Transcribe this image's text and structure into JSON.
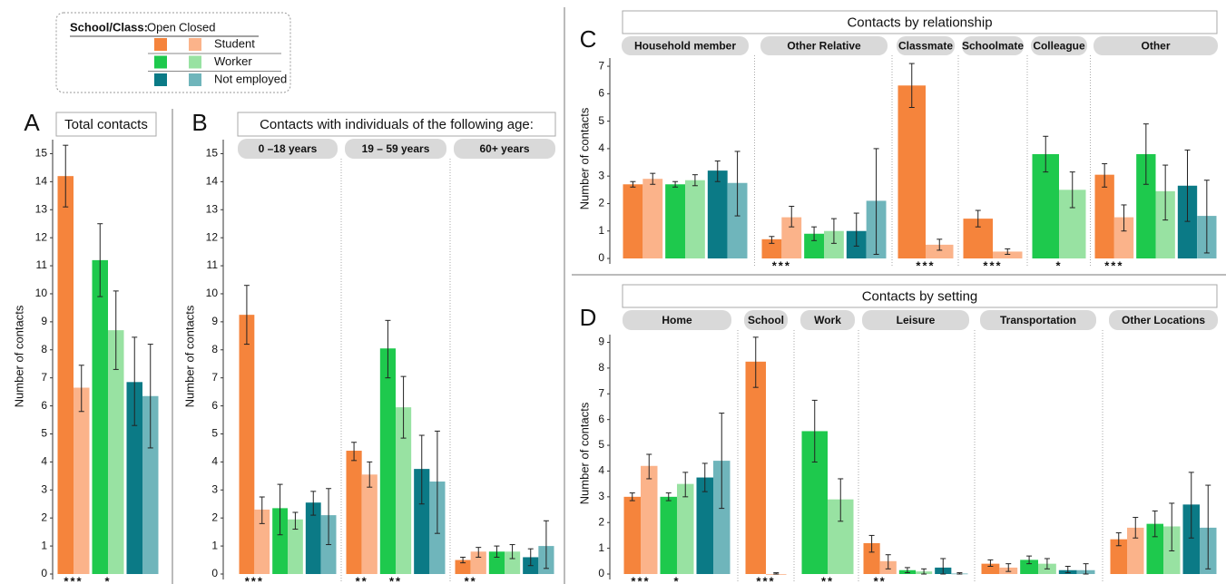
{
  "legend": {
    "title": "School/Class:",
    "open": "Open",
    "closed": "Closed",
    "groups": [
      {
        "name": "Student",
        "colors": [
          "#f5843c",
          "#fbb38a"
        ]
      },
      {
        "name": "Worker",
        "colors": [
          "#1ec94d",
          "#98e2a2"
        ]
      },
      {
        "name": "Not employed",
        "colors": [
          "#0b7a86",
          "#6fb5bb"
        ]
      }
    ]
  },
  "chart_data": [
    {
      "type": "bar",
      "panel": "A",
      "title": "Total contacts",
      "y_label": "Number of contacts",
      "ylim": [
        0,
        15.5
      ],
      "yticks": [
        0,
        1,
        2,
        3,
        4,
        5,
        6,
        7,
        8,
        9,
        10,
        11,
        12,
        13,
        14,
        15
      ],
      "facets": [
        {
          "groups": [
            0,
            1,
            2
          ],
          "values": [
            [
              14.2,
              6.65
            ],
            [
              11.2,
              8.7
            ],
            [
              6.85,
              6.35
            ]
          ],
          "lower": [
            [
              13.1,
              5.8
            ],
            [
              9.9,
              7.3
            ],
            [
              5.3,
              4.5
            ]
          ],
          "upper": [
            [
              15.3,
              7.45
            ],
            [
              12.5,
              10.1
            ],
            [
              8.45,
              8.2
            ]
          ],
          "stars": [
            "***",
            "*",
            null
          ]
        }
      ]
    },
    {
      "type": "bar",
      "panel": "B",
      "title": "Contacts with individuals of the following age:",
      "y_label": "Number of contacts",
      "ylim": [
        0,
        15.5
      ],
      "yticks": [
        0,
        1,
        2,
        3,
        4,
        5,
        6,
        7,
        8,
        9,
        10,
        11,
        12,
        13,
        14,
        15
      ],
      "facets": [
        {
          "label": "0 –18 years",
          "groups": [
            0,
            1,
            2
          ],
          "values": [
            [
              9.25,
              2.3
            ],
            [
              2.35,
              1.95
            ],
            [
              2.55,
              2.1
            ]
          ],
          "lower": [
            [
              8.2,
              1.8
            ],
            [
              1.4,
              1.6
            ],
            [
              2.1,
              1.05
            ]
          ],
          "upper": [
            [
              10.3,
              2.75
            ],
            [
              3.2,
              2.2
            ],
            [
              2.95,
              3.05
            ]
          ],
          "stars": [
            "***",
            null,
            null
          ]
        },
        {
          "label": "19 – 59 years",
          "groups": [
            0,
            1,
            2
          ],
          "values": [
            [
              4.4,
              3.55
            ],
            [
              8.05,
              5.95
            ],
            [
              3.75,
              3.3
            ]
          ],
          "lower": [
            [
              4.05,
              3.1
            ],
            [
              7.0,
              4.85
            ],
            [
              2.5,
              1.45
            ]
          ],
          "upper": [
            [
              4.7,
              4.0
            ],
            [
              9.05,
              7.05
            ],
            [
              4.95,
              5.1
            ]
          ],
          "stars": [
            "**",
            "**",
            null
          ]
        },
        {
          "label": "60+ years",
          "groups": [
            0,
            1,
            2
          ],
          "values": [
            [
              0.5,
              0.8
            ],
            [
              0.8,
              0.8
            ],
            [
              0.6,
              1.0
            ]
          ],
          "lower": [
            [
              0.4,
              0.6
            ],
            [
              0.6,
              0.55
            ],
            [
              0.3,
              0.2
            ]
          ],
          "upper": [
            [
              0.6,
              0.95
            ],
            [
              1.0,
              1.05
            ],
            [
              0.9,
              1.9
            ]
          ],
          "stars": [
            "**",
            null,
            null
          ]
        }
      ]
    },
    {
      "type": "bar",
      "panel": "C",
      "title": "Contacts by relationship",
      "y_label": "Number of contacts",
      "ylim": [
        0,
        7.3
      ],
      "yticks": [
        0,
        1,
        2,
        3,
        4,
        5,
        6,
        7
      ],
      "facets": [
        {
          "label": "Household member",
          "groups": [
            0,
            1,
            2
          ],
          "values": [
            [
              2.7,
              2.9
            ],
            [
              2.7,
              2.85
            ],
            [
              3.2,
              2.75
            ]
          ],
          "lower": [
            [
              2.6,
              2.7
            ],
            [
              2.6,
              2.65
            ],
            [
              2.8,
              1.55
            ]
          ],
          "upper": [
            [
              2.8,
              3.1
            ],
            [
              2.8,
              3.05
            ],
            [
              3.55,
              3.9
            ]
          ],
          "stars": [
            null,
            null,
            null
          ]
        },
        {
          "label": "Other Relative",
          "groups": [
            0,
            1,
            2
          ],
          "values": [
            [
              0.7,
              1.5
            ],
            [
              0.9,
              1.0
            ],
            [
              1.0,
              2.1
            ]
          ],
          "lower": [
            [
              0.55,
              1.15
            ],
            [
              0.65,
              0.55
            ],
            [
              0.45,
              0.15
            ]
          ],
          "upper": [
            [
              0.8,
              1.9
            ],
            [
              1.15,
              1.45
            ],
            [
              1.65,
              4.0
            ]
          ],
          "stars": [
            "***",
            null,
            null
          ]
        },
        {
          "label": "Classmate",
          "groups": [
            0
          ],
          "values": [
            [
              6.3,
              0.5
            ]
          ],
          "lower": [
            [
              5.5,
              0.3
            ]
          ],
          "upper": [
            [
              7.1,
              0.7
            ]
          ],
          "stars": [
            "***"
          ]
        },
        {
          "label": "Schoolmate",
          "groups": [
            0
          ],
          "values": [
            [
              1.45,
              0.25
            ]
          ],
          "lower": [
            [
              1.15,
              0.15
            ]
          ],
          "upper": [
            [
              1.75,
              0.35
            ]
          ],
          "stars": [
            "***"
          ]
        },
        {
          "label": "Colleague",
          "groups": [
            1
          ],
          "values": [
            [
              3.8,
              2.5
            ]
          ],
          "lower": [
            [
              3.15,
              1.85
            ]
          ],
          "upper": [
            [
              4.45,
              3.15
            ]
          ],
          "stars": [
            "*"
          ]
        },
        {
          "label": "Other",
          "groups": [
            0,
            1,
            2
          ],
          "values": [
            [
              3.05,
              1.5
            ],
            [
              3.8,
              2.45
            ],
            [
              2.65,
              1.55
            ]
          ],
          "lower": [
            [
              2.6,
              1.0
            ],
            [
              2.7,
              1.4
            ],
            [
              1.35,
              0.2
            ]
          ],
          "upper": [
            [
              3.45,
              1.95
            ],
            [
              4.9,
              3.4
            ],
            [
              3.95,
              2.85
            ]
          ],
          "stars": [
            "***",
            null,
            null
          ]
        }
      ]
    },
    {
      "type": "bar",
      "panel": "D",
      "title": "Contacts by setting",
      "y_label": "Number of contacts",
      "ylim": [
        0,
        9.3
      ],
      "yticks": [
        0,
        1,
        2,
        3,
        4,
        5,
        6,
        7,
        8,
        9
      ],
      "facets": [
        {
          "label": "Home",
          "groups": [
            0,
            1,
            2
          ],
          "values": [
            [
              3.0,
              4.2
            ],
            [
              3.0,
              3.5
            ],
            [
              3.75,
              4.4
            ]
          ],
          "lower": [
            [
              2.85,
              3.7
            ],
            [
              2.85,
              3.0
            ],
            [
              3.2,
              2.55
            ]
          ],
          "upper": [
            [
              3.15,
              4.65
            ],
            [
              3.15,
              3.95
            ],
            [
              4.3,
              6.25
            ]
          ],
          "stars": [
            "***",
            "*",
            null
          ]
        },
        {
          "label": "School",
          "groups": [
            0
          ],
          "values": [
            [
              8.25,
              0.0
            ]
          ],
          "lower": [
            [
              7.25,
              0.0
            ]
          ],
          "upper": [
            [
              9.2,
              0.05
            ]
          ],
          "stars": [
            "***"
          ]
        },
        {
          "label": "Work",
          "groups": [
            1
          ],
          "values": [
            [
              5.55,
              2.9
            ]
          ],
          "lower": [
            [
              4.35,
              2.05
            ]
          ],
          "upper": [
            [
              6.75,
              3.7
            ]
          ],
          "stars": [
            "**"
          ]
        },
        {
          "label": "Leisure",
          "groups": [
            0,
            1,
            2
          ],
          "values": [
            [
              1.2,
              0.5
            ],
            [
              0.15,
              0.1
            ],
            [
              0.25,
              0.02
            ]
          ],
          "lower": [
            [
              0.85,
              0.2
            ],
            [
              0.05,
              0.0
            ],
            [
              0.0,
              0.0
            ]
          ],
          "upper": [
            [
              1.5,
              0.75
            ],
            [
              0.25,
              0.2
            ],
            [
              0.6,
              0.05
            ]
          ],
          "stars": [
            "**",
            null,
            null
          ]
        },
        {
          "label": "Transportation",
          "groups": [
            0,
            1,
            2
          ],
          "values": [
            [
              0.4,
              0.25
            ],
            [
              0.55,
              0.4
            ],
            [
              0.15,
              0.15
            ]
          ],
          "lower": [
            [
              0.3,
              0.1
            ],
            [
              0.4,
              0.2
            ],
            [
              0.05,
              0.0
            ]
          ],
          "upper": [
            [
              0.55,
              0.4
            ],
            [
              0.7,
              0.6
            ],
            [
              0.3,
              0.4
            ]
          ],
          "stars": [
            null,
            null,
            null
          ]
        },
        {
          "label": "Other Locations",
          "groups": [
            0,
            1,
            2
          ],
          "values": [
            [
              1.35,
              1.8
            ],
            [
              1.95,
              1.85
            ],
            [
              2.7,
              1.8
            ]
          ],
          "lower": [
            [
              1.1,
              1.4
            ],
            [
              1.45,
              0.9
            ],
            [
              1.4,
              0.2
            ]
          ],
          "upper": [
            [
              1.6,
              2.2
            ],
            [
              2.45,
              2.75
            ],
            [
              3.95,
              3.45
            ]
          ],
          "stars": [
            null,
            null,
            null
          ]
        }
      ]
    }
  ]
}
